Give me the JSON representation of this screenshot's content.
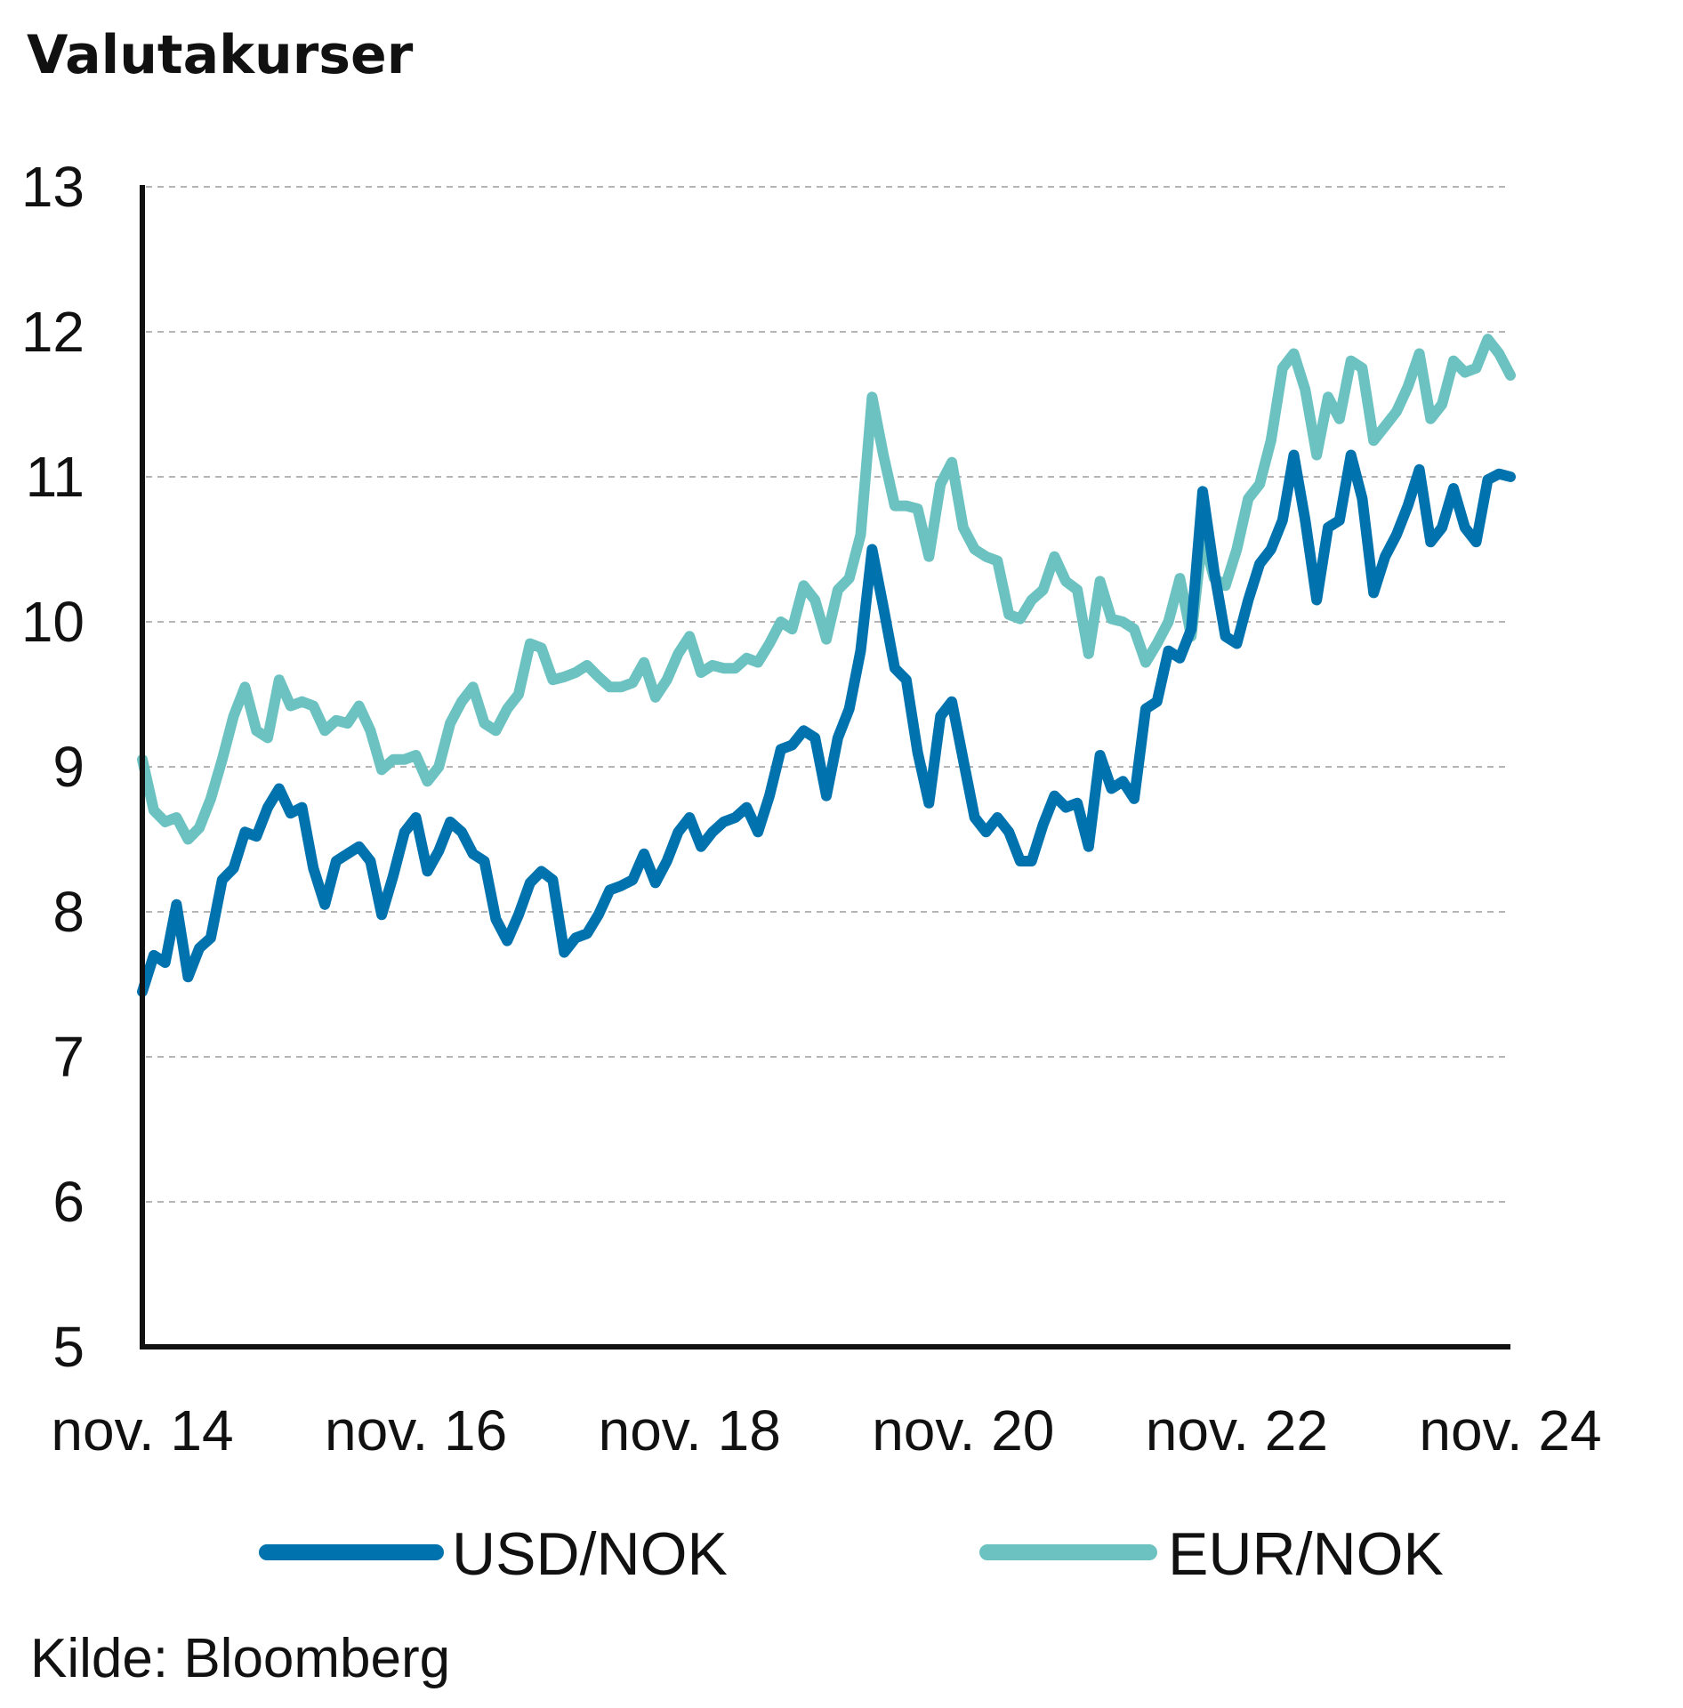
{
  "chart_data": {
    "type": "line",
    "title": "Valutakurser",
    "source": "Kilde: Bloomberg",
    "xlabel": "",
    "ylabel": "",
    "ylim": [
      5,
      13
    ],
    "yticks": [
      5,
      6,
      7,
      8,
      9,
      10,
      11,
      12,
      13
    ],
    "x_tick_labels": [
      "nov. 14",
      "nov. 16",
      "nov. 18",
      "nov. 20",
      "nov. 22",
      "nov. 24"
    ],
    "x_range_years": [
      2014.833,
      2024.833
    ],
    "grid": true,
    "legend_position": "bottom",
    "series": [
      {
        "name": "USD/NOK",
        "color": "#0072ae",
        "points": [
          [
            2014.833,
            7.45
          ],
          [
            2014.917,
            7.7
          ],
          [
            2015.0,
            7.65
          ],
          [
            2015.083,
            8.05
          ],
          [
            2015.167,
            7.55
          ],
          [
            2015.25,
            7.75
          ],
          [
            2015.333,
            7.82
          ],
          [
            2015.417,
            8.22
          ],
          [
            2015.5,
            8.3
          ],
          [
            2015.583,
            8.55
          ],
          [
            2015.667,
            8.52
          ],
          [
            2015.75,
            8.72
          ],
          [
            2015.833,
            8.85
          ],
          [
            2015.917,
            8.68
          ],
          [
            2016.0,
            8.72
          ],
          [
            2016.083,
            8.3
          ],
          [
            2016.167,
            8.05
          ],
          [
            2016.25,
            8.35
          ],
          [
            2016.333,
            8.4
          ],
          [
            2016.417,
            8.45
          ],
          [
            2016.5,
            8.35
          ],
          [
            2016.583,
            7.98
          ],
          [
            2016.667,
            8.25
          ],
          [
            2016.75,
            8.55
          ],
          [
            2016.833,
            8.65
          ],
          [
            2016.917,
            8.28
          ],
          [
            2017.0,
            8.42
          ],
          [
            2017.083,
            8.62
          ],
          [
            2017.167,
            8.55
          ],
          [
            2017.25,
            8.4
          ],
          [
            2017.333,
            8.35
          ],
          [
            2017.417,
            7.95
          ],
          [
            2017.5,
            7.8
          ],
          [
            2017.583,
            7.98
          ],
          [
            2017.667,
            8.2
          ],
          [
            2017.75,
            8.28
          ],
          [
            2017.833,
            8.22
          ],
          [
            2017.917,
            7.72
          ],
          [
            2018.0,
            7.82
          ],
          [
            2018.083,
            7.85
          ],
          [
            2018.167,
            7.98
          ],
          [
            2018.25,
            8.15
          ],
          [
            2018.333,
            8.18
          ],
          [
            2018.417,
            8.22
          ],
          [
            2018.5,
            8.4
          ],
          [
            2018.583,
            8.2
          ],
          [
            2018.667,
            8.35
          ],
          [
            2018.75,
            8.55
          ],
          [
            2018.833,
            8.65
          ],
          [
            2018.917,
            8.45
          ],
          [
            2019.0,
            8.55
          ],
          [
            2019.083,
            8.62
          ],
          [
            2019.167,
            8.65
          ],
          [
            2019.25,
            8.72
          ],
          [
            2019.333,
            8.55
          ],
          [
            2019.417,
            8.8
          ],
          [
            2019.5,
            9.12
          ],
          [
            2019.583,
            9.15
          ],
          [
            2019.667,
            9.25
          ],
          [
            2019.75,
            9.2
          ],
          [
            2019.833,
            8.8
          ],
          [
            2019.917,
            9.2
          ],
          [
            2020.0,
            9.4
          ],
          [
            2020.083,
            9.8
          ],
          [
            2020.167,
            10.5
          ],
          [
            2020.25,
            10.1
          ],
          [
            2020.333,
            9.68
          ],
          [
            2020.417,
            9.6
          ],
          [
            2020.5,
            9.1
          ],
          [
            2020.583,
            8.75
          ],
          [
            2020.667,
            9.35
          ],
          [
            2020.75,
            9.45
          ],
          [
            2020.833,
            9.05
          ],
          [
            2020.917,
            8.65
          ],
          [
            2021.0,
            8.55
          ],
          [
            2021.083,
            8.65
          ],
          [
            2021.167,
            8.55
          ],
          [
            2021.25,
            8.35
          ],
          [
            2021.333,
            8.35
          ],
          [
            2021.417,
            8.6
          ],
          [
            2021.5,
            8.8
          ],
          [
            2021.583,
            8.72
          ],
          [
            2021.667,
            8.75
          ],
          [
            2021.75,
            8.45
          ],
          [
            2021.833,
            9.08
          ],
          [
            2021.917,
            8.85
          ],
          [
            2022.0,
            8.9
          ],
          [
            2022.083,
            8.78
          ],
          [
            2022.167,
            9.4
          ],
          [
            2022.25,
            9.45
          ],
          [
            2022.333,
            9.8
          ],
          [
            2022.417,
            9.75
          ],
          [
            2022.5,
            9.95
          ],
          [
            2022.583,
            10.9
          ],
          [
            2022.667,
            10.35
          ],
          [
            2022.75,
            9.9
          ],
          [
            2022.833,
            9.85
          ],
          [
            2022.917,
            10.15
          ],
          [
            2023.0,
            10.4
          ],
          [
            2023.083,
            10.5
          ],
          [
            2023.167,
            10.7
          ],
          [
            2023.25,
            11.15
          ],
          [
            2023.333,
            10.7
          ],
          [
            2023.417,
            10.15
          ],
          [
            2023.5,
            10.65
          ],
          [
            2023.583,
            10.7
          ],
          [
            2023.667,
            11.15
          ],
          [
            2023.75,
            10.85
          ],
          [
            2023.833,
            10.2
          ],
          [
            2023.917,
            10.45
          ],
          [
            2024.0,
            10.6
          ],
          [
            2024.083,
            10.8
          ],
          [
            2024.167,
            11.05
          ],
          [
            2024.25,
            10.55
          ],
          [
            2024.333,
            10.65
          ],
          [
            2024.417,
            10.92
          ],
          [
            2024.5,
            10.65
          ],
          [
            2024.583,
            10.55
          ],
          [
            2024.667,
            10.98
          ],
          [
            2024.75,
            11.02
          ],
          [
            2024.833,
            11.0
          ]
        ]
      },
      {
        "name": "EUR/NOK",
        "color": "#6bc2c0",
        "points": [
          [
            2014.833,
            9.05
          ],
          [
            2014.917,
            8.7
          ],
          [
            2015.0,
            8.62
          ],
          [
            2015.083,
            8.65
          ],
          [
            2015.167,
            8.5
          ],
          [
            2015.25,
            8.58
          ],
          [
            2015.333,
            8.78
          ],
          [
            2015.417,
            9.05
          ],
          [
            2015.5,
            9.35
          ],
          [
            2015.583,
            9.55
          ],
          [
            2015.667,
            9.25
          ],
          [
            2015.75,
            9.2
          ],
          [
            2015.833,
            9.6
          ],
          [
            2015.917,
            9.42
          ],
          [
            2016.0,
            9.45
          ],
          [
            2016.083,
            9.42
          ],
          [
            2016.167,
            9.25
          ],
          [
            2016.25,
            9.32
          ],
          [
            2016.333,
            9.3
          ],
          [
            2016.417,
            9.42
          ],
          [
            2016.5,
            9.25
          ],
          [
            2016.583,
            8.98
          ],
          [
            2016.667,
            9.05
          ],
          [
            2016.75,
            9.05
          ],
          [
            2016.833,
            9.08
          ],
          [
            2016.917,
            8.9
          ],
          [
            2017.0,
            9.0
          ],
          [
            2017.083,
            9.3
          ],
          [
            2017.167,
            9.45
          ],
          [
            2017.25,
            9.55
          ],
          [
            2017.333,
            9.3
          ],
          [
            2017.417,
            9.25
          ],
          [
            2017.5,
            9.4
          ],
          [
            2017.583,
            9.5
          ],
          [
            2017.667,
            9.85
          ],
          [
            2017.75,
            9.82
          ],
          [
            2017.833,
            9.6
          ],
          [
            2017.917,
            9.62
          ],
          [
            2018.0,
            9.65
          ],
          [
            2018.083,
            9.7
          ],
          [
            2018.167,
            9.62
          ],
          [
            2018.25,
            9.55
          ],
          [
            2018.333,
            9.55
          ],
          [
            2018.417,
            9.58
          ],
          [
            2018.5,
            9.72
          ],
          [
            2018.583,
            9.48
          ],
          [
            2018.667,
            9.6
          ],
          [
            2018.75,
            9.78
          ],
          [
            2018.833,
            9.9
          ],
          [
            2018.917,
            9.65
          ],
          [
            2019.0,
            9.7
          ],
          [
            2019.083,
            9.68
          ],
          [
            2019.167,
            9.68
          ],
          [
            2019.25,
            9.75
          ],
          [
            2019.333,
            9.72
          ],
          [
            2019.417,
            9.85
          ],
          [
            2019.5,
            10.0
          ],
          [
            2019.583,
            9.95
          ],
          [
            2019.667,
            10.25
          ],
          [
            2019.75,
            10.15
          ],
          [
            2019.833,
            9.88
          ],
          [
            2019.917,
            10.22
          ],
          [
            2020.0,
            10.3
          ],
          [
            2020.083,
            10.6
          ],
          [
            2020.167,
            11.55
          ],
          [
            2020.25,
            11.15
          ],
          [
            2020.333,
            10.8
          ],
          [
            2020.417,
            10.8
          ],
          [
            2020.5,
            10.78
          ],
          [
            2020.583,
            10.45
          ],
          [
            2020.667,
            10.95
          ],
          [
            2020.75,
            11.1
          ],
          [
            2020.833,
            10.65
          ],
          [
            2020.917,
            10.5
          ],
          [
            2021.0,
            10.45
          ],
          [
            2021.083,
            10.42
          ],
          [
            2021.167,
            10.05
          ],
          [
            2021.25,
            10.02
          ],
          [
            2021.333,
            10.15
          ],
          [
            2021.417,
            10.22
          ],
          [
            2021.5,
            10.45
          ],
          [
            2021.583,
            10.28
          ],
          [
            2021.667,
            10.22
          ],
          [
            2021.75,
            9.78
          ],
          [
            2021.833,
            10.28
          ],
          [
            2021.917,
            10.02
          ],
          [
            2022.0,
            10.0
          ],
          [
            2022.083,
            9.95
          ],
          [
            2022.167,
            9.72
          ],
          [
            2022.25,
            9.85
          ],
          [
            2022.333,
            10.0
          ],
          [
            2022.417,
            10.3
          ],
          [
            2022.5,
            9.9
          ],
          [
            2022.583,
            10.6
          ],
          [
            2022.667,
            10.3
          ],
          [
            2022.75,
            10.25
          ],
          [
            2022.833,
            10.5
          ],
          [
            2022.917,
            10.85
          ],
          [
            2023.0,
            10.95
          ],
          [
            2023.083,
            11.25
          ],
          [
            2023.167,
            11.75
          ],
          [
            2023.25,
            11.85
          ],
          [
            2023.333,
            11.6
          ],
          [
            2023.417,
            11.15
          ],
          [
            2023.5,
            11.55
          ],
          [
            2023.583,
            11.4
          ],
          [
            2023.667,
            11.8
          ],
          [
            2023.75,
            11.75
          ],
          [
            2023.833,
            11.25
          ],
          [
            2023.917,
            11.35
          ],
          [
            2024.0,
            11.45
          ],
          [
            2024.083,
            11.62
          ],
          [
            2024.167,
            11.85
          ],
          [
            2024.25,
            11.4
          ],
          [
            2024.333,
            11.5
          ],
          [
            2024.417,
            11.8
          ],
          [
            2024.5,
            11.72
          ],
          [
            2024.583,
            11.75
          ],
          [
            2024.667,
            11.95
          ],
          [
            2024.75,
            11.85
          ],
          [
            2024.833,
            11.7
          ]
        ]
      }
    ]
  }
}
